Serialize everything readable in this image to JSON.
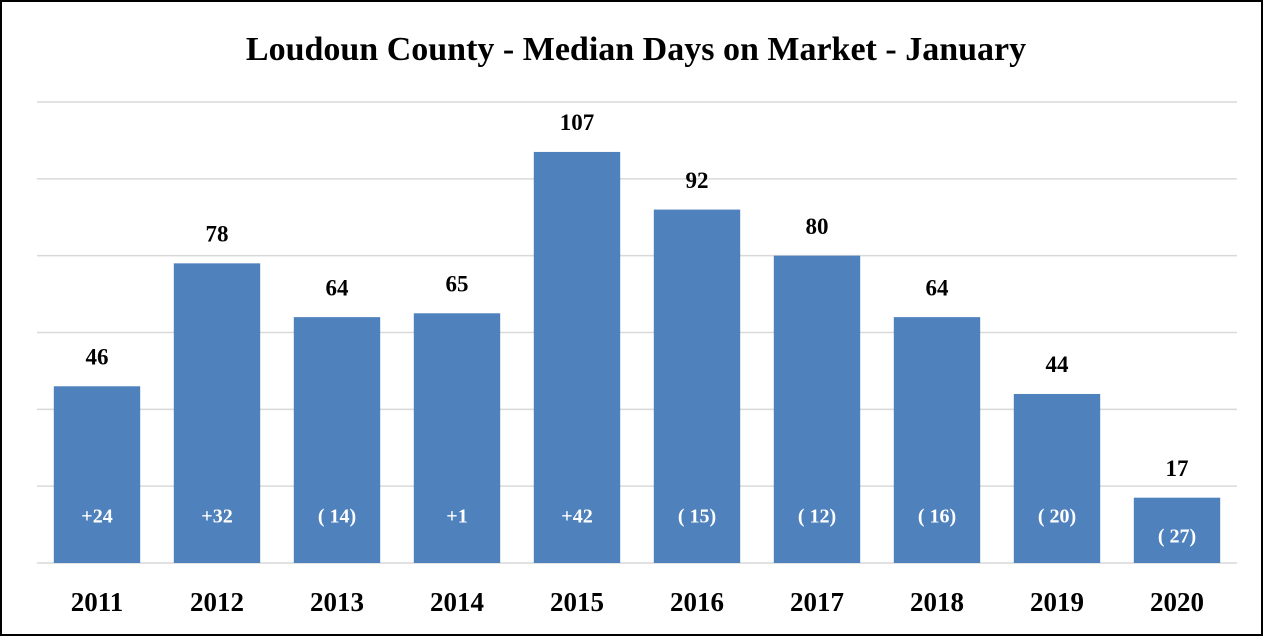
{
  "chart_data": {
    "type": "bar",
    "title": "Loudoun County - Median Days on Market - January",
    "categories": [
      "2011",
      "2012",
      "2013",
      "2014",
      "2015",
      "2016",
      "2017",
      "2018",
      "2019",
      "2020"
    ],
    "values": [
      46,
      78,
      64,
      65,
      107,
      92,
      80,
      64,
      44,
      17
    ],
    "change_labels": [
      "+24",
      "+32",
      "( 14)",
      "+1",
      "+42",
      "( 15)",
      "( 12)",
      "( 16)",
      "( 20)",
      "( 27)"
    ],
    "color": "#4f81bd",
    "ylim": [
      0,
      120
    ],
    "yticks": [
      0,
      20,
      40,
      60,
      80,
      100,
      120
    ],
    "grid": true
  }
}
